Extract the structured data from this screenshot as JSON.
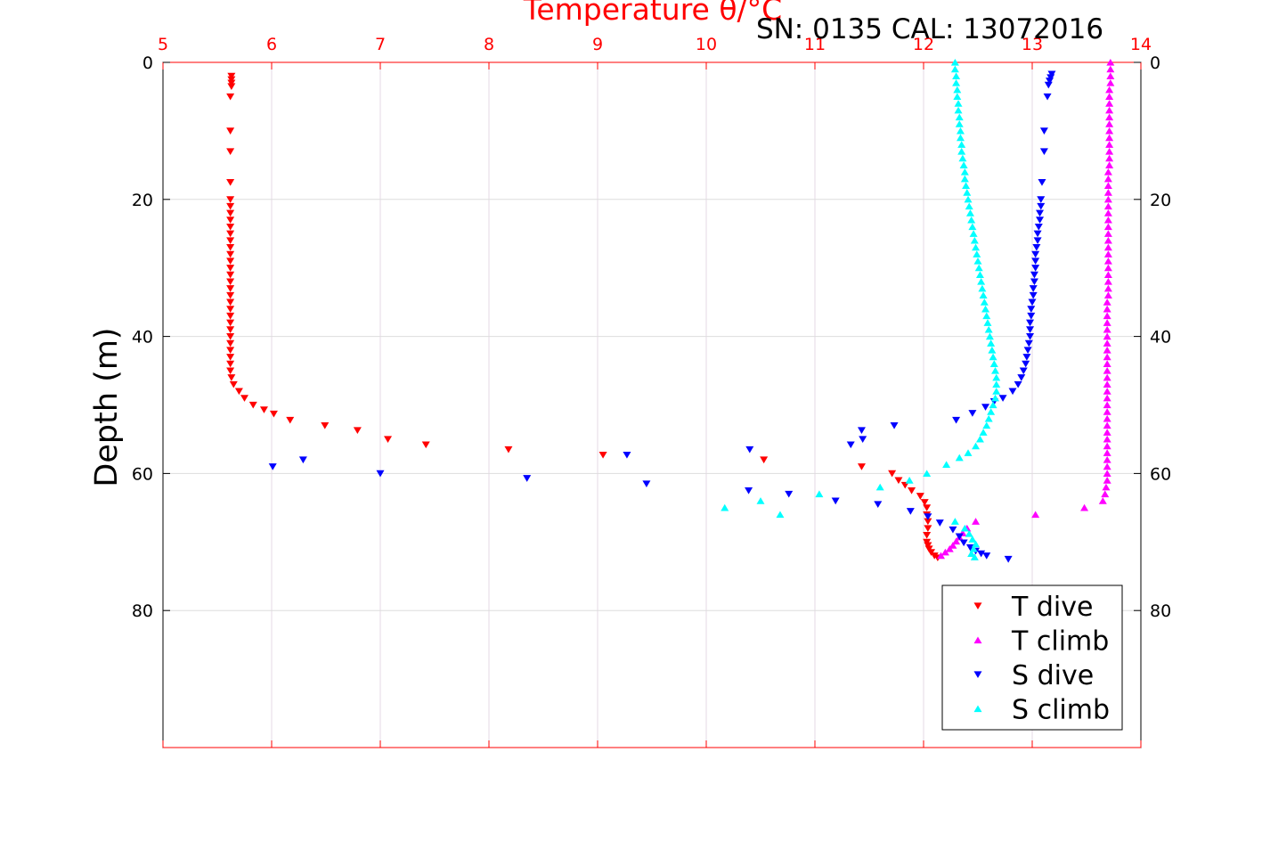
{
  "chart_data": {
    "type": "scatter",
    "title": "Temperature θ/°C",
    "annotation": "SN: 0135  CAL: 13072016",
    "ylabel": "Depth (m)",
    "xlim": [
      5,
      14
    ],
    "ylim": [
      0,
      100
    ],
    "y_reversed": true,
    "x_ticks": [
      "5",
      "6",
      "7",
      "8",
      "9",
      "10",
      "11",
      "12",
      "13",
      "14"
    ],
    "y_ticks": [
      "0",
      "20",
      "40",
      "60",
      "80"
    ],
    "x_axis_position": "top",
    "x_axis_color": "#ff0000",
    "grid": true,
    "legend_position": "bottom-right",
    "series": [
      {
        "name": "T dive",
        "color": "#ff0000",
        "marker": "triangle-down",
        "points": [
          [
            5.63,
            2
          ],
          [
            5.63,
            2.5
          ],
          [
            5.63,
            3
          ],
          [
            5.63,
            3.5
          ],
          [
            5.62,
            5
          ],
          [
            5.62,
            10
          ],
          [
            5.62,
            13
          ],
          [
            5.62,
            17.5
          ],
          [
            5.62,
            20
          ],
          [
            5.62,
            21
          ],
          [
            5.62,
            22
          ],
          [
            5.62,
            23
          ],
          [
            5.62,
            24
          ],
          [
            5.62,
            25
          ],
          [
            5.62,
            26
          ],
          [
            5.62,
            27
          ],
          [
            5.62,
            28
          ],
          [
            5.62,
            29
          ],
          [
            5.62,
            30
          ],
          [
            5.62,
            31
          ],
          [
            5.62,
            32
          ],
          [
            5.62,
            33
          ],
          [
            5.62,
            34
          ],
          [
            5.62,
            35
          ],
          [
            5.62,
            36
          ],
          [
            5.62,
            37
          ],
          [
            5.62,
            38
          ],
          [
            5.62,
            39
          ],
          [
            5.62,
            40
          ],
          [
            5.62,
            41
          ],
          [
            5.62,
            42
          ],
          [
            5.62,
            43
          ],
          [
            5.62,
            44
          ],
          [
            5.62,
            45
          ],
          [
            5.63,
            46
          ],
          [
            5.65,
            47
          ],
          [
            5.7,
            48
          ],
          [
            5.75,
            49
          ],
          [
            5.83,
            50
          ],
          [
            5.93,
            50.7
          ],
          [
            6.02,
            51.3
          ],
          [
            6.17,
            52.2
          ],
          [
            6.49,
            53
          ],
          [
            6.79,
            53.7
          ],
          [
            7.07,
            55
          ],
          [
            7.42,
            55.8
          ],
          [
            8.18,
            56.5
          ],
          [
            9.05,
            57.3
          ],
          [
            10.53,
            58
          ],
          [
            11.43,
            59
          ],
          [
            11.71,
            60
          ],
          [
            11.77,
            61
          ],
          [
            11.83,
            61.7
          ],
          [
            11.89,
            62.5
          ],
          [
            11.97,
            63.3
          ],
          [
            12.01,
            64.2
          ],
          [
            12.03,
            65
          ],
          [
            12.03,
            66
          ],
          [
            12.04,
            67
          ],
          [
            12.04,
            68
          ],
          [
            12.03,
            69
          ],
          [
            12.03,
            70
          ],
          [
            12.04,
            70.5
          ],
          [
            12.05,
            71
          ],
          [
            12.07,
            71.5
          ],
          [
            12.1,
            72
          ],
          [
            12.13,
            72.3
          ]
        ]
      },
      {
        "name": "T climb",
        "color": "#ff00ff",
        "marker": "triangle-up",
        "points": [
          [
            13.72,
            0
          ],
          [
            13.72,
            1
          ],
          [
            13.72,
            2
          ],
          [
            13.72,
            3
          ],
          [
            13.71,
            4
          ],
          [
            13.71,
            5
          ],
          [
            13.71,
            6
          ],
          [
            13.71,
            7
          ],
          [
            13.71,
            8
          ],
          [
            13.71,
            9
          ],
          [
            13.71,
            10
          ],
          [
            13.71,
            11
          ],
          [
            13.71,
            12
          ],
          [
            13.71,
            13
          ],
          [
            13.71,
            14
          ],
          [
            13.71,
            15
          ],
          [
            13.7,
            16
          ],
          [
            13.7,
            17
          ],
          [
            13.7,
            18
          ],
          [
            13.7,
            19
          ],
          [
            13.7,
            20
          ],
          [
            13.7,
            21
          ],
          [
            13.7,
            22
          ],
          [
            13.7,
            23
          ],
          [
            13.7,
            24
          ],
          [
            13.7,
            25
          ],
          [
            13.7,
            26
          ],
          [
            13.7,
            27
          ],
          [
            13.7,
            28
          ],
          [
            13.7,
            29
          ],
          [
            13.7,
            30
          ],
          [
            13.7,
            31
          ],
          [
            13.7,
            32
          ],
          [
            13.7,
            33
          ],
          [
            13.7,
            34
          ],
          [
            13.69,
            35
          ],
          [
            13.69,
            36
          ],
          [
            13.69,
            37
          ],
          [
            13.69,
            38
          ],
          [
            13.69,
            39
          ],
          [
            13.69,
            40
          ],
          [
            13.69,
            41
          ],
          [
            13.69,
            42
          ],
          [
            13.69,
            43
          ],
          [
            13.69,
            44
          ],
          [
            13.69,
            45
          ],
          [
            13.69,
            46
          ],
          [
            13.69,
            47
          ],
          [
            13.69,
            48
          ],
          [
            13.69,
            49
          ],
          [
            13.69,
            50
          ],
          [
            13.69,
            51
          ],
          [
            13.69,
            52
          ],
          [
            13.69,
            53
          ],
          [
            13.69,
            54
          ],
          [
            13.69,
            55
          ],
          [
            13.69,
            56
          ],
          [
            13.69,
            57
          ],
          [
            13.69,
            58
          ],
          [
            13.69,
            59
          ],
          [
            13.69,
            60
          ],
          [
            13.69,
            61
          ],
          [
            13.68,
            62
          ],
          [
            13.67,
            63
          ],
          [
            13.65,
            64
          ],
          [
            13.48,
            65
          ],
          [
            13.03,
            66
          ],
          [
            12.48,
            67
          ],
          [
            12.4,
            68
          ],
          [
            12.36,
            68.7
          ],
          [
            12.33,
            69.3
          ],
          [
            12.3,
            69.9
          ],
          [
            12.27,
            70.5
          ],
          [
            12.24,
            71
          ],
          [
            12.2,
            71.5
          ],
          [
            12.16,
            72
          ]
        ]
      },
      {
        "name": "S dive",
        "color": "#0000ff",
        "marker": "triangle-down",
        "points": [
          [
            13.18,
            1.7
          ],
          [
            13.17,
            2.2
          ],
          [
            13.16,
            2.7
          ],
          [
            13.15,
            3.3
          ],
          [
            13.14,
            5
          ],
          [
            13.11,
            10
          ],
          [
            13.11,
            13
          ],
          [
            13.09,
            17.5
          ],
          [
            13.08,
            20
          ],
          [
            13.08,
            21
          ],
          [
            13.07,
            22
          ],
          [
            13.07,
            23
          ],
          [
            13.06,
            24
          ],
          [
            13.05,
            25
          ],
          [
            13.05,
            26
          ],
          [
            13.04,
            27
          ],
          [
            13.03,
            28
          ],
          [
            13.03,
            29
          ],
          [
            13.03,
            30
          ],
          [
            13.02,
            31
          ],
          [
            13.02,
            32
          ],
          [
            13.01,
            33
          ],
          [
            13.01,
            34
          ],
          [
            13.0,
            35
          ],
          [
            12.99,
            36
          ],
          [
            12.99,
            37
          ],
          [
            12.98,
            38
          ],
          [
            12.98,
            39
          ],
          [
            12.98,
            40
          ],
          [
            12.97,
            41
          ],
          [
            12.96,
            42
          ],
          [
            12.95,
            43
          ],
          [
            12.94,
            44
          ],
          [
            12.92,
            45
          ],
          [
            12.9,
            46
          ],
          [
            12.87,
            47
          ],
          [
            12.82,
            48
          ],
          [
            12.73,
            49
          ],
          [
            12.65,
            49.5
          ],
          [
            12.57,
            50.3
          ],
          [
            12.45,
            51.2
          ],
          [
            12.3,
            52.2
          ],
          [
            11.73,
            53
          ],
          [
            11.43,
            53.7
          ],
          [
            11.44,
            55
          ],
          [
            11.33,
            55.8
          ],
          [
            10.4,
            56.5
          ],
          [
            9.27,
            57.3
          ],
          [
            6.29,
            58
          ],
          [
            6.01,
            59
          ],
          [
            7.0,
            60
          ],
          [
            8.35,
            60.7
          ],
          [
            9.45,
            61.5
          ],
          [
            10.39,
            62.5
          ],
          [
            10.76,
            63
          ],
          [
            11.19,
            64
          ],
          [
            11.58,
            64.5
          ],
          [
            11.88,
            65.5
          ],
          [
            12.04,
            66.3
          ],
          [
            12.15,
            67.2
          ],
          [
            12.27,
            68.2
          ],
          [
            12.33,
            69.2
          ],
          [
            12.37,
            70.1
          ],
          [
            12.43,
            70.8
          ],
          [
            12.48,
            71.3
          ],
          [
            12.53,
            71.7
          ],
          [
            12.58,
            72
          ],
          [
            12.78,
            72.5
          ]
        ]
      },
      {
        "name": "S climb",
        "color": "#00ffff",
        "marker": "triangle-up",
        "points": [
          [
            12.29,
            0
          ],
          [
            12.29,
            1
          ],
          [
            12.3,
            2
          ],
          [
            12.3,
            3
          ],
          [
            12.31,
            4
          ],
          [
            12.31,
            5
          ],
          [
            12.32,
            6
          ],
          [
            12.32,
            7
          ],
          [
            12.33,
            8
          ],
          [
            12.33,
            9
          ],
          [
            12.34,
            10
          ],
          [
            12.34,
            11
          ],
          [
            12.35,
            12
          ],
          [
            12.35,
            13
          ],
          [
            12.36,
            14
          ],
          [
            12.37,
            15
          ],
          [
            12.38,
            16
          ],
          [
            12.38,
            17
          ],
          [
            12.39,
            18
          ],
          [
            12.4,
            19
          ],
          [
            12.41,
            20
          ],
          [
            12.42,
            21
          ],
          [
            12.43,
            22
          ],
          [
            12.44,
            23
          ],
          [
            12.45,
            24
          ],
          [
            12.46,
            25
          ],
          [
            12.47,
            26
          ],
          [
            12.48,
            27
          ],
          [
            12.49,
            28
          ],
          [
            12.5,
            29
          ],
          [
            12.51,
            30
          ],
          [
            12.52,
            31
          ],
          [
            12.53,
            32
          ],
          [
            12.54,
            33
          ],
          [
            12.55,
            34
          ],
          [
            12.56,
            35
          ],
          [
            12.57,
            36
          ],
          [
            12.58,
            37
          ],
          [
            12.59,
            38
          ],
          [
            12.6,
            39
          ],
          [
            12.61,
            40
          ],
          [
            12.62,
            41
          ],
          [
            12.63,
            42
          ],
          [
            12.64,
            43
          ],
          [
            12.65,
            44
          ],
          [
            12.66,
            45
          ],
          [
            12.67,
            46
          ],
          [
            12.67,
            47
          ],
          [
            12.67,
            48
          ],
          [
            12.66,
            49
          ],
          [
            12.64,
            50
          ],
          [
            12.62,
            51
          ],
          [
            12.6,
            52
          ],
          [
            12.58,
            53
          ],
          [
            12.55,
            54
          ],
          [
            12.52,
            55
          ],
          [
            12.48,
            56
          ],
          [
            12.41,
            57
          ],
          [
            12.33,
            57.7
          ],
          [
            12.21,
            58.7
          ],
          [
            12.03,
            60
          ],
          [
            11.87,
            61
          ],
          [
            11.6,
            62
          ],
          [
            11.04,
            63
          ],
          [
            10.5,
            64
          ],
          [
            10.17,
            65
          ],
          [
            10.68,
            66
          ],
          [
            12.29,
            67
          ],
          [
            12.38,
            68
          ],
          [
            12.42,
            68.8
          ],
          [
            12.45,
            69.6
          ],
          [
            12.48,
            70.3
          ],
          [
            12.46,
            71
          ],
          [
            12.44,
            71.7
          ],
          [
            12.47,
            72.2
          ]
        ]
      }
    ]
  }
}
